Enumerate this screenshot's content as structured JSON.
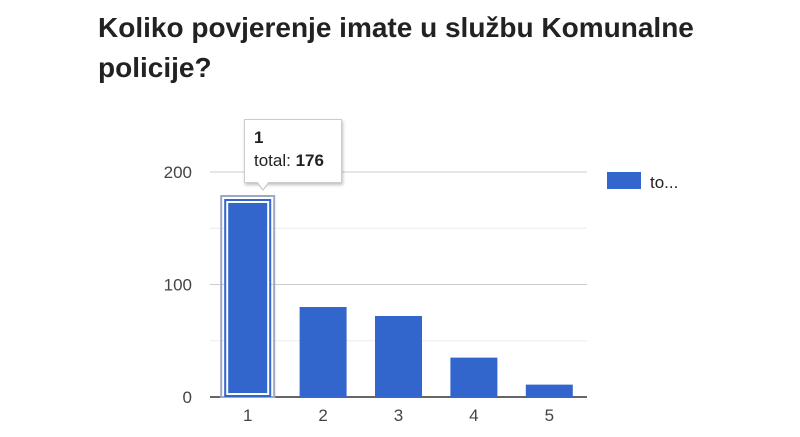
{
  "chart_data": {
    "type": "bar",
    "title": "Koliko povjerenje imate u službu Komunalne policije?",
    "categories": [
      "1",
      "2",
      "3",
      "4",
      "5"
    ],
    "series": [
      {
        "name": "to...",
        "values": [
          176,
          80,
          72,
          35,
          11
        ]
      }
    ],
    "ylim": [
      0,
      200
    ],
    "yticks": [
      0,
      100,
      200
    ],
    "grid": true,
    "legend_position": "right",
    "bar_color": "#3366cc",
    "highlighted_index": 0,
    "tooltip": {
      "category": "1",
      "label": "total:",
      "value": "176"
    }
  }
}
